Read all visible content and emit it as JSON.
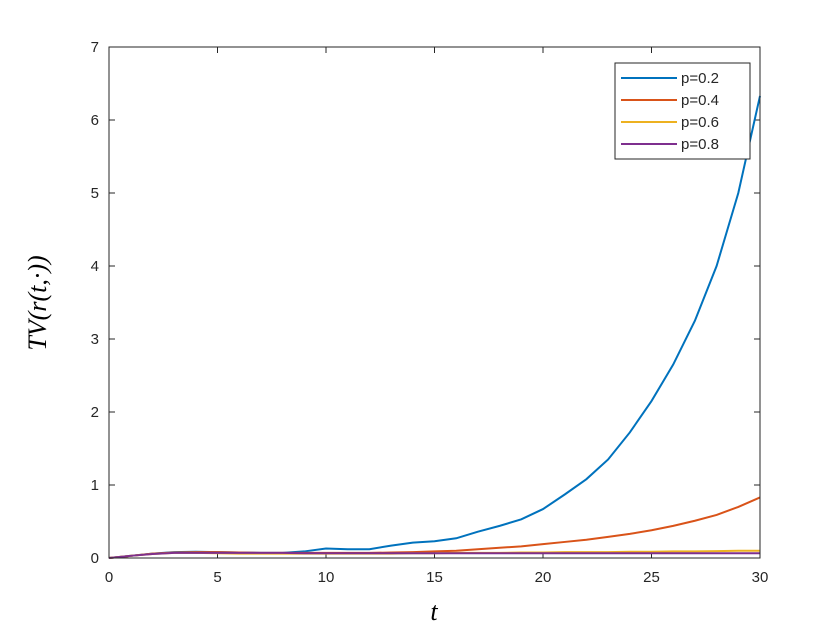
{
  "chart_data": {
    "type": "line",
    "x": [
      0,
      1,
      2,
      3,
      4,
      5,
      6,
      7,
      8,
      9,
      10,
      11,
      12,
      13,
      14,
      15,
      16,
      17,
      18,
      19,
      20,
      21,
      22,
      23,
      24,
      25,
      26,
      27,
      28,
      29,
      30
    ],
    "series": [
      {
        "name": "p=0.2",
        "color": "#0072BD",
        "values": [
          0,
          0.03,
          0.06,
          0.08,
          0.085,
          0.08,
          0.075,
          0.07,
          0.07,
          0.09,
          0.13,
          0.12,
          0.12,
          0.17,
          0.21,
          0.23,
          0.27,
          0.36,
          0.44,
          0.53,
          0.67,
          0.87,
          1.08,
          1.35,
          1.72,
          2.15,
          2.65,
          3.25,
          4.0,
          5.0,
          6.33
        ]
      },
      {
        "name": "p=0.4",
        "color": "#D95319",
        "values": [
          0,
          0.03,
          0.06,
          0.075,
          0.08,
          0.08,
          0.075,
          0.07,
          0.07,
          0.07,
          0.07,
          0.07,
          0.07,
          0.075,
          0.08,
          0.09,
          0.1,
          0.12,
          0.14,
          0.16,
          0.19,
          0.22,
          0.25,
          0.29,
          0.33,
          0.38,
          0.44,
          0.51,
          0.59,
          0.7,
          0.83
        ]
      },
      {
        "name": "p=0.6",
        "color": "#EDB120",
        "values": [
          0,
          0.03,
          0.055,
          0.07,
          0.07,
          0.065,
          0.06,
          0.06,
          0.06,
          0.06,
          0.06,
          0.06,
          0.06,
          0.06,
          0.065,
          0.065,
          0.07,
          0.07,
          0.07,
          0.075,
          0.075,
          0.08,
          0.08,
          0.08,
          0.085,
          0.085,
          0.09,
          0.09,
          0.095,
          0.1,
          0.1
        ]
      },
      {
        "name": "p=0.8",
        "color": "#7E2F8E",
        "values": [
          0,
          0.03,
          0.055,
          0.07,
          0.07,
          0.07,
          0.07,
          0.07,
          0.07,
          0.065,
          0.065,
          0.065,
          0.065,
          0.065,
          0.065,
          0.065,
          0.065,
          0.065,
          0.065,
          0.065,
          0.065,
          0.065,
          0.065,
          0.065,
          0.065,
          0.065,
          0.065,
          0.065,
          0.065,
          0.065,
          0.065
        ]
      }
    ],
    "xlabel": "t",
    "ylabel": "TV(r(t,·))",
    "xlim": [
      0,
      30
    ],
    "ylim": [
      0,
      7
    ],
    "xticks": [
      0,
      5,
      10,
      15,
      20,
      25,
      30
    ],
    "yticks": [
      0,
      1,
      2,
      3,
      4,
      5,
      6,
      7
    ],
    "legend": "top-right"
  }
}
